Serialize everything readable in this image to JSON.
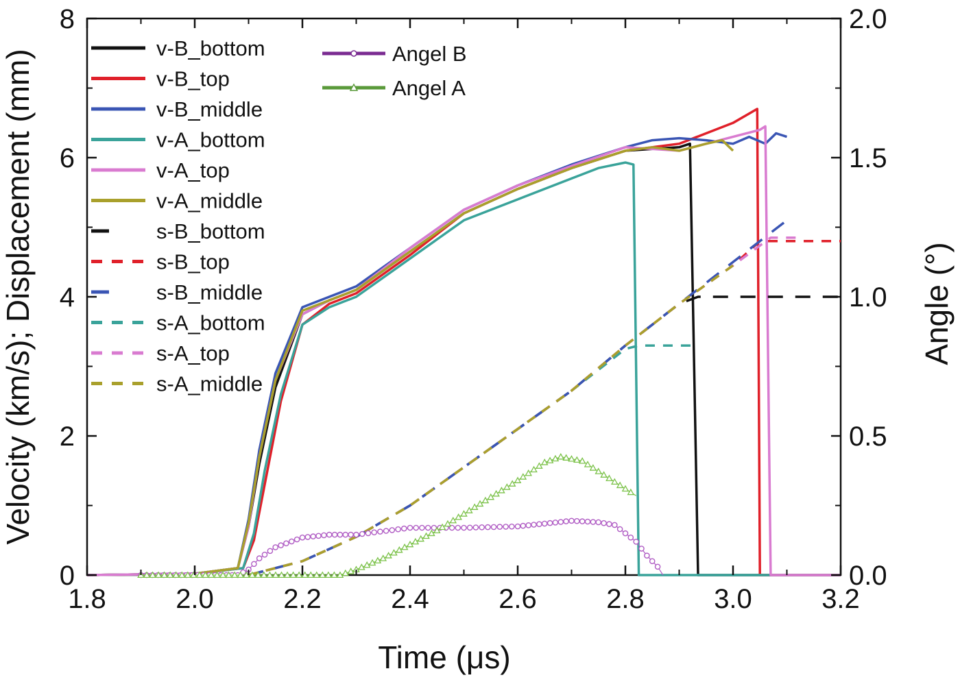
{
  "chart_data": {
    "type": "line",
    "xlabel": "Time (μs)",
    "ylabel": "Velocity (km/s); Displacement (mm)",
    "y2label": "Angle (°)",
    "xlim": [
      1.8,
      3.2
    ],
    "ylim": [
      0,
      8
    ],
    "y2lim": [
      0.0,
      2.0
    ],
    "xticks": [
      "1.8",
      "2.0",
      "2.2",
      "2.4",
      "2.6",
      "2.8",
      "3.0",
      "3.2"
    ],
    "yticks": [
      "0",
      "2",
      "4",
      "6",
      "8"
    ],
    "y2ticks": [
      "0.0",
      "0.5",
      "1.0",
      "1.5",
      "2.0"
    ],
    "grid": false,
    "legend_placement": "top-left",
    "series": [
      {
        "name": "v-B_bottom",
        "color": "#111111",
        "dash": "solid",
        "axis": "left",
        "x": [
          1.8,
          2.0,
          2.08,
          2.1,
          2.12,
          2.15,
          2.2,
          2.25,
          2.3,
          2.4,
          2.5,
          2.6,
          2.7,
          2.8,
          2.9,
          2.92,
          2.935,
          3.2
        ],
        "y": [
          0,
          0.02,
          0.1,
          0.7,
          1.6,
          2.7,
          3.75,
          3.95,
          4.1,
          4.65,
          5.2,
          5.55,
          5.85,
          6.1,
          6.15,
          6.2,
          0,
          0
        ]
      },
      {
        "name": "v-B_top",
        "color": "#e0202a",
        "dash": "solid",
        "axis": "left",
        "x": [
          1.8,
          2.0,
          2.09,
          2.11,
          2.13,
          2.16,
          2.2,
          2.25,
          2.3,
          2.4,
          2.5,
          2.6,
          2.7,
          2.8,
          2.9,
          3.0,
          3.045,
          3.05,
          3.2
        ],
        "y": [
          0,
          0.02,
          0.1,
          0.5,
          1.3,
          2.5,
          3.6,
          3.9,
          4.05,
          4.6,
          5.2,
          5.55,
          5.85,
          6.1,
          6.2,
          6.5,
          6.7,
          0,
          0
        ]
      },
      {
        "name": "v-B_middle",
        "color": "#3a55b4",
        "dash": "solid",
        "axis": "left",
        "x": [
          2.0,
          2.08,
          2.1,
          2.12,
          2.15,
          2.2,
          2.25,
          2.3,
          2.4,
          2.5,
          2.6,
          2.7,
          2.8,
          2.85,
          2.9,
          2.95,
          3.0,
          3.03,
          3.06,
          3.08,
          3.1
        ],
        "y": [
          0.02,
          0.1,
          0.8,
          1.8,
          2.9,
          3.85,
          4.0,
          4.15,
          4.7,
          5.25,
          5.6,
          5.9,
          6.15,
          6.25,
          6.28,
          6.25,
          6.2,
          6.3,
          6.2,
          6.35,
          6.3
        ]
      },
      {
        "name": "v-A_bottom",
        "color": "#3aa39a",
        "dash": "solid",
        "axis": "left",
        "x": [
          1.8,
          2.0,
          2.09,
          2.11,
          2.13,
          2.16,
          2.2,
          2.25,
          2.3,
          2.4,
          2.5,
          2.6,
          2.7,
          2.75,
          2.8,
          2.815,
          2.825,
          3.2
        ],
        "y": [
          0,
          0.02,
          0.1,
          0.6,
          1.5,
          2.6,
          3.6,
          3.85,
          4.0,
          4.55,
          5.1,
          5.4,
          5.7,
          5.85,
          5.93,
          5.9,
          0,
          0
        ]
      },
      {
        "name": "v-A_top",
        "color": "#d97bd0",
        "dash": "solid",
        "axis": "left",
        "x": [
          1.8,
          2.0,
          2.08,
          2.1,
          2.12,
          2.15,
          2.2,
          2.25,
          2.3,
          2.4,
          2.5,
          2.6,
          2.7,
          2.8,
          2.9,
          3.0,
          3.05,
          3.06,
          3.07,
          3.2
        ],
        "y": [
          0,
          0.02,
          0.1,
          0.7,
          1.7,
          2.8,
          3.75,
          3.95,
          4.1,
          4.7,
          5.25,
          5.6,
          5.88,
          6.15,
          6.1,
          6.3,
          6.4,
          6.45,
          0,
          0
        ]
      },
      {
        "name": "v-A_middle",
        "color": "#a9a02c",
        "dash": "solid",
        "axis": "left",
        "x": [
          2.0,
          2.08,
          2.1,
          2.12,
          2.15,
          2.2,
          2.25,
          2.3,
          2.4,
          2.5,
          2.6,
          2.7,
          2.8,
          2.85,
          2.9,
          2.95,
          2.98,
          3.0
        ],
        "y": [
          0.02,
          0.1,
          0.75,
          1.7,
          2.8,
          3.8,
          3.95,
          4.1,
          4.65,
          5.2,
          5.55,
          5.85,
          6.1,
          6.15,
          6.1,
          6.2,
          6.25,
          6.1
        ]
      },
      {
        "name": "s-B_bottom",
        "color": "#111111",
        "dash": "long",
        "axis": "left",
        "x": [
          2.1,
          2.2,
          2.3,
          2.4,
          2.5,
          2.6,
          2.7,
          2.8,
          2.9,
          2.935,
          3.2
        ],
        "y": [
          0,
          0.2,
          0.55,
          1.0,
          1.55,
          2.1,
          2.65,
          3.3,
          3.9,
          4.0,
          4.0
        ]
      },
      {
        "name": "s-B_top",
        "color": "#e0202a",
        "dash": "short",
        "axis": "left",
        "x": [
          2.1,
          2.2,
          2.3,
          2.4,
          2.5,
          2.6,
          2.7,
          2.8,
          2.9,
          3.0,
          3.05,
          3.2
        ],
        "y": [
          0,
          0.2,
          0.55,
          1.0,
          1.55,
          2.1,
          2.65,
          3.3,
          3.9,
          4.45,
          4.8,
          4.8
        ]
      },
      {
        "name": "s-B_middle",
        "color": "#3a55b4",
        "dash": "long",
        "axis": "left",
        "x": [
          2.1,
          2.2,
          2.3,
          2.4,
          2.5,
          2.6,
          2.7,
          2.8,
          2.9,
          3.0,
          3.05,
          3.1
        ],
        "y": [
          0,
          0.2,
          0.55,
          1.0,
          1.55,
          2.1,
          2.65,
          3.3,
          3.9,
          4.5,
          4.8,
          5.1
        ]
      },
      {
        "name": "s-A_bottom",
        "color": "#3aa39a",
        "dash": "short",
        "axis": "left",
        "x": [
          2.1,
          2.2,
          2.3,
          2.4,
          2.5,
          2.6,
          2.7,
          2.8,
          2.825,
          2.93
        ],
        "y": [
          0,
          0.2,
          0.55,
          1.0,
          1.55,
          2.1,
          2.65,
          3.25,
          3.3,
          3.3
        ]
      },
      {
        "name": "s-A_top",
        "color": "#d97bd0",
        "dash": "short",
        "axis": "left",
        "x": [
          2.1,
          2.2,
          2.3,
          2.4,
          2.5,
          2.6,
          2.7,
          2.8,
          2.9,
          3.0,
          3.07,
          3.12
        ],
        "y": [
          0,
          0.2,
          0.55,
          1.0,
          1.55,
          2.1,
          2.65,
          3.3,
          3.9,
          4.45,
          4.85,
          4.85
        ]
      },
      {
        "name": "s-A_middle",
        "color": "#a9a02c",
        "dash": "short",
        "axis": "left",
        "x": [
          2.1,
          2.2,
          2.3,
          2.4,
          2.5,
          2.6,
          2.7,
          2.8,
          2.9,
          3.0
        ],
        "y": [
          0,
          0.2,
          0.55,
          1.0,
          1.55,
          2.1,
          2.65,
          3.3,
          3.9,
          4.45
        ]
      },
      {
        "name": "Angel B",
        "color": "#b05cc4",
        "dash": "solid",
        "axis": "right",
        "marker": "circle",
        "x": [
          1.9,
          2.08,
          2.1,
          2.12,
          2.15,
          2.2,
          2.25,
          2.3,
          2.4,
          2.5,
          2.6,
          2.65,
          2.7,
          2.75,
          2.78,
          2.8,
          2.82,
          2.84,
          2.86,
          2.87
        ],
        "y": [
          0.0,
          0.0,
          0.02,
          0.06,
          0.1,
          0.135,
          0.145,
          0.145,
          0.17,
          0.17,
          0.175,
          0.185,
          0.195,
          0.19,
          0.18,
          0.15,
          0.12,
          0.07,
          0.03,
          0.0
        ]
      },
      {
        "name": "Angel A",
        "color": "#7cc24a",
        "dash": "solid",
        "axis": "right",
        "marker": "triangle",
        "x": [
          1.9,
          2.27,
          2.3,
          2.35,
          2.4,
          2.45,
          2.5,
          2.55,
          2.6,
          2.65,
          2.68,
          2.72,
          2.76,
          2.8,
          2.82
        ],
        "y": [
          0.0,
          0.0,
          0.02,
          0.06,
          0.11,
          0.16,
          0.22,
          0.28,
          0.34,
          0.405,
          0.425,
          0.41,
          0.36,
          0.31,
          0.285
        ]
      }
    ]
  }
}
